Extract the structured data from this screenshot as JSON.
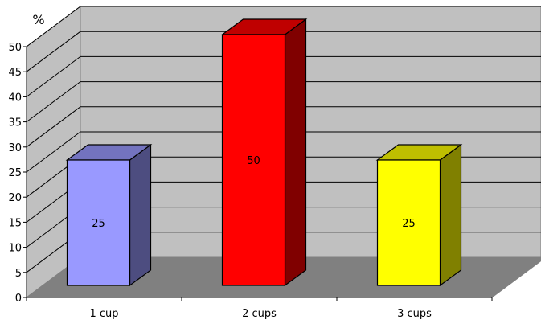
{
  "chart_data": {
    "type": "bar",
    "categories": [
      "1 cup",
      "2 cups",
      "3 cups"
    ],
    "values": [
      25,
      50,
      25
    ],
    "data_labels": [
      "25",
      "50",
      "25"
    ],
    "ylabel": "%",
    "ylim": [
      0,
      50
    ],
    "yticks": [
      "0",
      "5",
      "10",
      "15",
      "20",
      "25",
      "30",
      "35",
      "40",
      "45",
      "50"
    ],
    "bar_colors": [
      "#9999ff",
      "#ff0000",
      "#ffff00"
    ],
    "grid": true,
    "style": "3d",
    "wall_color": "#c0c0c0",
    "floor_color": "#808080"
  }
}
